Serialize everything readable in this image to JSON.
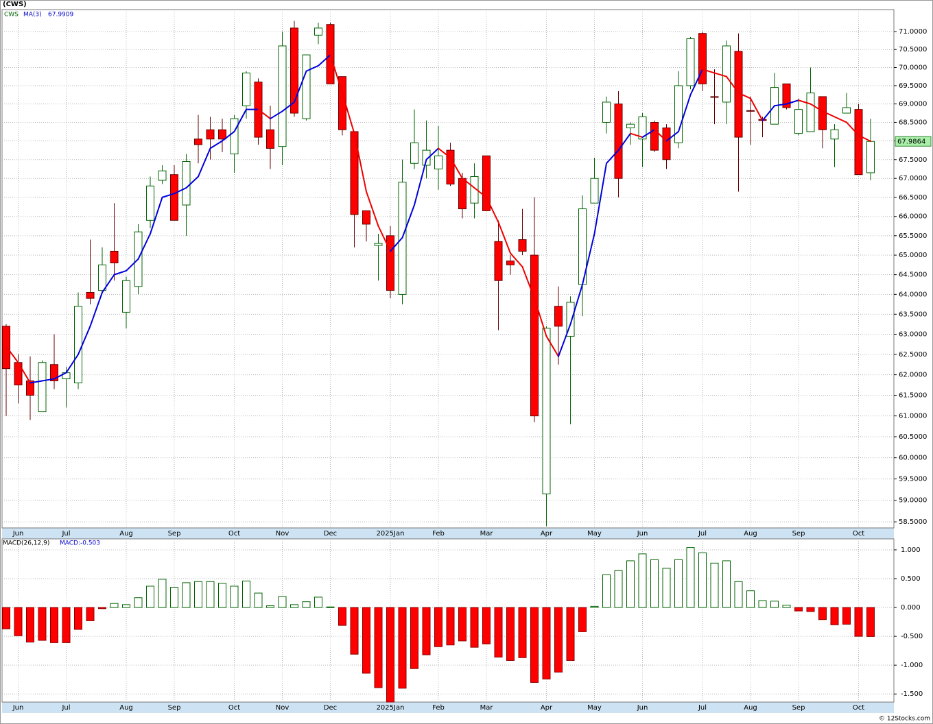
{
  "chart_data": {
    "type": "candlestick",
    "title": "(CWS)",
    "symbol": "CWS",
    "footer": "© 12Stocks.com",
    "log_scale": true,
    "grid": true,
    "up_color": "#006400",
    "down_color": "#ff0000",
    "categories": [
      null,
      "Jun",
      null,
      null,
      null,
      "Jul",
      null,
      null,
      null,
      null,
      "Aug",
      null,
      null,
      null,
      "Sep",
      null,
      null,
      null,
      null,
      "Oct",
      null,
      null,
      null,
      "Nov",
      null,
      null,
      null,
      "Dec",
      null,
      null,
      null,
      null,
      "2025Jan",
      null,
      null,
      null,
      "Feb",
      null,
      null,
      null,
      "Mar",
      null,
      null,
      null,
      null,
      "Apr",
      null,
      null,
      null,
      "May",
      null,
      null,
      null,
      "Jun",
      null,
      null,
      null,
      null,
      "Jul",
      null,
      null,
      null,
      "Aug",
      null,
      null,
      null,
      "Sep",
      null,
      null,
      null,
      null,
      "Oct",
      null
    ],
    "open": [
      63.2,
      62.3,
      61.85,
      61.1,
      62.25,
      61.9,
      61.8,
      64.05,
      64.1,
      65.1,
      63.55,
      64.2,
      65.9,
      66.95,
      67.1,
      66.3,
      68.05,
      68.3,
      68.3,
      67.65,
      68.95,
      69.6,
      68.3,
      67.85,
      71.1,
      68.6,
      70.9,
      71.2,
      69.75,
      68.25,
      66.15,
      65.25,
      65.5,
      64.0,
      67.4,
      67.35,
      67.25,
      67.75,
      67.0,
      66.35,
      67.6,
      65.35,
      64.85,
      65.4,
      65.0,
      59.15,
      63.7,
      62.95,
      64.25,
      66.35,
      68.5,
      69.0,
      68.35,
      68.05,
      68.5,
      68.35,
      67.95,
      69.5,
      70.95,
      69.2,
      69.05,
      70.45,
      68.82,
      68.58,
      68.45,
      69.55,
      68.2,
      68.25,
      69.2,
      68.05,
      68.75,
      68.85,
      67.15
    ],
    "high": [
      63.25,
      62.5,
      62.45,
      62.35,
      63.0,
      62.2,
      64.05,
      65.4,
      65.2,
      66.35,
      64.45,
      65.8,
      67.05,
      67.35,
      67.35,
      67.65,
      68.7,
      68.65,
      68.6,
      68.7,
      69.9,
      69.7,
      68.95,
      71.0,
      71.3,
      70.35,
      71.25,
      71.25,
      69.75,
      68.25,
      66.15,
      65.55,
      65.75,
      67.5,
      68.85,
      68.55,
      68.4,
      67.95,
      67.15,
      67.4,
      67.6,
      65.9,
      65.0,
      66.2,
      66.5,
      63.2,
      64.2,
      63.95,
      66.55,
      67.55,
      69.2,
      69.35,
      68.5,
      68.75,
      68.55,
      68.45,
      69.9,
      70.85,
      71.0,
      69.95,
      70.75,
      70.95,
      69.2,
      68.65,
      69.85,
      69.55,
      69.15,
      70.0,
      69.2,
      68.45,
      69.3,
      69.0,
      68.6
    ],
    "low": [
      61.0,
      61.3,
      60.9,
      61.1,
      61.65,
      61.2,
      61.65,
      63.75,
      64.05,
      64.35,
      63.15,
      64.0,
      65.7,
      66.85,
      65.9,
      65.5,
      67.4,
      67.5,
      67.7,
      67.15,
      68.6,
      67.9,
      67.25,
      67.35,
      68.65,
      68.55,
      70.65,
      69.55,
      68.15,
      65.2,
      65.35,
      64.35,
      63.9,
      63.75,
      67.25,
      67.0,
      66.7,
      66.8,
      65.95,
      65.95,
      66.15,
      63.1,
      64.5,
      65.0,
      60.85,
      58.4,
      62.25,
      60.8,
      63.45,
      66.35,
      68.2,
      66.5,
      67.9,
      67.3,
      67.7,
      67.25,
      67.8,
      69.4,
      69.35,
      68.45,
      68.45,
      66.65,
      67.9,
      68.1,
      68.45,
      68.85,
      68.15,
      68.25,
      67.8,
      67.3,
      68.75,
      67.1,
      66.95
    ],
    "close": [
      62.15,
      61.75,
      61.5,
      62.3,
      61.85,
      62.05,
      63.7,
      63.9,
      64.75,
      64.8,
      64.35,
      65.6,
      66.8,
      67.2,
      65.9,
      67.45,
      67.9,
      68.05,
      68.05,
      68.6,
      69.85,
      68.1,
      67.8,
      70.6,
      68.75,
      70.35,
      71.1,
      69.55,
      68.3,
      66.05,
      65.8,
      65.3,
      64.1,
      66.9,
      67.95,
      67.75,
      67.6,
      66.85,
      66.2,
      67.05,
      66.15,
      64.35,
      64.75,
      65.1,
      61.0,
      63.15,
      63.2,
      63.8,
      66.2,
      67.0,
      69.05,
      67.0,
      68.45,
      68.65,
      67.75,
      67.5,
      69.5,
      70.8,
      69.55,
      69.18,
      70.6,
      68.1,
      68.8,
      68.55,
      69.45,
      68.9,
      68.85,
      69.3,
      68.3,
      68.3,
      68.9,
      67.1,
      67.9864
    ],
    "ylim": [
      58.36,
      71.62
    ],
    "yticks": [
      {
        "value": 58.5,
        "label": "58.5000"
      },
      {
        "value": 59,
        "label": "59.0000"
      },
      {
        "value": 59.5,
        "label": "59.5000"
      },
      {
        "value": 60,
        "label": "60.0000"
      },
      {
        "value": 60.5,
        "label": "60.5000"
      },
      {
        "value": 61,
        "label": "61.0000"
      },
      {
        "value": 61.5,
        "label": "61.5000"
      },
      {
        "value": 62,
        "label": "62.0000"
      },
      {
        "value": 62.5,
        "label": "62.5000"
      },
      {
        "value": 63,
        "label": "63.0000"
      },
      {
        "value": 63.5,
        "label": "63.5000"
      },
      {
        "value": 64,
        "label": "64.0000"
      },
      {
        "value": 64.5,
        "label": "64.5000"
      },
      {
        "value": 65,
        "label": "65.0000"
      },
      {
        "value": 65.5,
        "label": "65.5000"
      },
      {
        "value": 66,
        "label": "66.0000"
      },
      {
        "value": 66.5,
        "label": "66.5000"
      },
      {
        "value": 67,
        "label": "67.0000"
      },
      {
        "value": 67.5,
        "label": "67.5000"
      },
      {
        "value": 68,
        "label": "68.0000"
      },
      {
        "value": 68.5,
        "label": "68.5000"
      },
      {
        "value": 69,
        "label": "69.0000"
      },
      {
        "value": 69.5,
        "label": "69.5000"
      },
      {
        "value": 70,
        "label": "70.0000"
      },
      {
        "value": 70.5,
        "label": "70.5000"
      },
      {
        "value": 71,
        "label": "71.0000"
      }
    ],
    "ma": {
      "name": "MA(3)",
      "up_color": "#0000dd",
      "down_color": "#ee0000",
      "values": [
        62.7,
        62.3,
        61.8,
        61.85,
        61.9,
        62.05,
        62.5,
        63.2,
        64.05,
        64.5,
        64.6,
        64.9,
        65.55,
        66.5,
        66.6,
        66.75,
        67.05,
        67.8,
        68.0,
        68.25,
        68.85,
        68.85,
        68.6,
        68.8,
        69.05,
        69.9,
        70.05,
        70.35,
        69.3,
        68.2,
        66.65,
        65.75,
        65.1,
        65.45,
        66.3,
        67.5,
        67.8,
        67.55,
        67.0,
        66.75,
        66.5,
        65.85,
        65.05,
        64.7,
        63.9,
        62.95,
        62.45,
        63.25,
        64.25,
        65.55,
        67.4,
        67.75,
        68.2,
        68.1,
        68.3,
        68.0,
        68.25,
        69.25,
        69.95,
        69.85,
        69.75,
        69.3,
        69.15,
        68.55,
        68.95,
        69.0,
        69.1,
        69.0,
        68.8,
        68.65,
        68.5,
        68.15,
        67.9909
      ]
    },
    "macd": {
      "type": "bar",
      "name": "MACD(26,12,9)",
      "label": "MACD:",
      "up_color": "#006400",
      "down_color": "#ff0000",
      "values": [
        -0.37,
        -0.49,
        -0.6,
        -0.57,
        -0.61,
        -0.61,
        -0.38,
        -0.23,
        -0.02,
        0.07,
        0.05,
        0.17,
        0.37,
        0.49,
        0.35,
        0.43,
        0.45,
        0.45,
        0.42,
        0.37,
        0.46,
        0.25,
        0.03,
        0.19,
        0.05,
        0.1,
        0.18,
        0.01,
        -0.31,
        -0.81,
        -1.14,
        -1.39,
        -1.64,
        -1.4,
        -1.06,
        -0.82,
        -0.68,
        -0.65,
        -0.58,
        -0.69,
        -0.63,
        -0.86,
        -0.92,
        -0.87,
        -1.3,
        -1.24,
        -1.12,
        -0.92,
        -0.42,
        0.02,
        0.57,
        0.64,
        0.81,
        0.93,
        0.83,
        0.68,
        0.83,
        1.04,
        0.95,
        0.77,
        0.81,
        0.45,
        0.29,
        0.12,
        0.11,
        0.04,
        -0.06,
        -0.07,
        -0.21,
        -0.3,
        -0.29,
        -0.5,
        -0.503
      ],
      "ylim": [
        -1.64,
        1.19
      ],
      "yticks": [
        {
          "value": -1.5,
          "label": "-1.500"
        },
        {
          "value": -1,
          "label": "-1.000"
        },
        {
          "value": -0.5,
          "label": "-0.500"
        },
        {
          "value": 0,
          "label": "0.000"
        },
        {
          "value": 0.5,
          "label": "0.500"
        },
        {
          "value": 1,
          "label": "1.000"
        }
      ]
    }
  }
}
